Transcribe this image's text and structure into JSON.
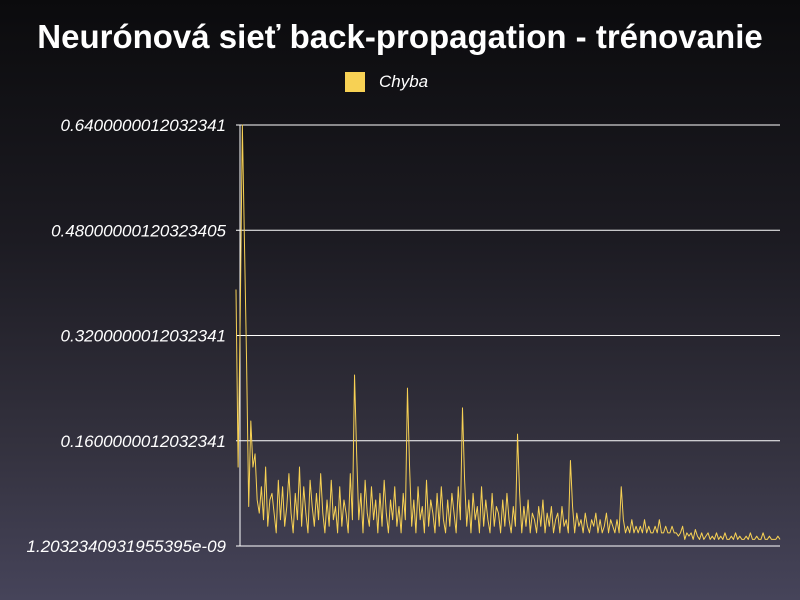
{
  "colors": {
    "series": "#f7d154",
    "grid": "#ffffff",
    "axis": "#ffffff"
  },
  "chart_data": {
    "type": "line",
    "title": "Neurónová sieť back-propagation - trénovanie",
    "xlabel": "",
    "ylabel": "",
    "grid": true,
    "legend_position": "top",
    "ylim": [
      1.2032340931955395e-09,
      0.6400000012032341
    ],
    "y_ticks": [
      {
        "value": 1.2032340931955395e-09,
        "label": "1.2032340931955395e-09"
      },
      {
        "value": 0.1600000012032341,
        "label": "0.1600000012032341"
      },
      {
        "value": 0.3200000012032341,
        "label": "0.3200000012032341"
      },
      {
        "value": 0.48000000120323405,
        "label": "0.48000000120323405"
      },
      {
        "value": 0.6400000012032341,
        "label": "0.6400000012032341"
      }
    ],
    "series": [
      {
        "name": "Chyba",
        "values": [
          0.39,
          0.12,
          0.35,
          0.64,
          0.46,
          0.28,
          0.06,
          0.19,
          0.12,
          0.14,
          0.07,
          0.05,
          0.09,
          0.04,
          0.12,
          0.03,
          0.07,
          0.08,
          0.05,
          0.02,
          0.1,
          0.04,
          0.09,
          0.03,
          0.06,
          0.11,
          0.05,
          0.02,
          0.08,
          0.04,
          0.12,
          0.03,
          0.09,
          0.05,
          0.02,
          0.1,
          0.06,
          0.03,
          0.08,
          0.04,
          0.11,
          0.05,
          0.02,
          0.07,
          0.03,
          0.1,
          0.04,
          0.06,
          0.02,
          0.09,
          0.03,
          0.07,
          0.05,
          0.02,
          0.11,
          0.04,
          0.26,
          0.14,
          0.04,
          0.08,
          0.02,
          0.1,
          0.05,
          0.03,
          0.09,
          0.04,
          0.07,
          0.02,
          0.08,
          0.03,
          0.1,
          0.05,
          0.02,
          0.07,
          0.04,
          0.09,
          0.03,
          0.06,
          0.02,
          0.08,
          0.04,
          0.24,
          0.12,
          0.03,
          0.07,
          0.02,
          0.09,
          0.04,
          0.06,
          0.02,
          0.1,
          0.03,
          0.07,
          0.05,
          0.02,
          0.08,
          0.03,
          0.09,
          0.04,
          0.02,
          0.07,
          0.03,
          0.08,
          0.05,
          0.02,
          0.09,
          0.04,
          0.21,
          0.1,
          0.03,
          0.07,
          0.02,
          0.08,
          0.04,
          0.06,
          0.02,
          0.09,
          0.03,
          0.07,
          0.04,
          0.02,
          0.08,
          0.03,
          0.06,
          0.05,
          0.02,
          0.07,
          0.03,
          0.08,
          0.04,
          0.02,
          0.06,
          0.03,
          0.17,
          0.08,
          0.02,
          0.06,
          0.03,
          0.07,
          0.02,
          0.05,
          0.04,
          0.02,
          0.06,
          0.03,
          0.07,
          0.02,
          0.05,
          0.03,
          0.06,
          0.02,
          0.04,
          0.05,
          0.02,
          0.06,
          0.03,
          0.04,
          0.02,
          0.13,
          0.06,
          0.02,
          0.05,
          0.03,
          0.04,
          0.02,
          0.05,
          0.03,
          0.02,
          0.04,
          0.03,
          0.05,
          0.02,
          0.04,
          0.02,
          0.03,
          0.05,
          0.02,
          0.04,
          0.03,
          0.02,
          0.04,
          0.02,
          0.09,
          0.04,
          0.02,
          0.03,
          0.02,
          0.04,
          0.02,
          0.03,
          0.02,
          0.03,
          0.02,
          0.04,
          0.02,
          0.03,
          0.02,
          0.02,
          0.03,
          0.02,
          0.04,
          0.02,
          0.02,
          0.03,
          0.02,
          0.02,
          0.03,
          0.02,
          0.02,
          0.015,
          0.02,
          0.03,
          0.01,
          0.02,
          0.015,
          0.02,
          0.01,
          0.025,
          0.015,
          0.01,
          0.02,
          0.01,
          0.015,
          0.02,
          0.01,
          0.015,
          0.01,
          0.02,
          0.01,
          0.015,
          0.01,
          0.02,
          0.01,
          0.01,
          0.015,
          0.01,
          0.02,
          0.01,
          0.015,
          0.01,
          0.01,
          0.015,
          0.01,
          0.02,
          0.01,
          0.01,
          0.015,
          0.01,
          0.01,
          0.02,
          0.01,
          0.01,
          0.015,
          0.01,
          0.01,
          0.01,
          0.015,
          0.01
        ]
      }
    ]
  }
}
